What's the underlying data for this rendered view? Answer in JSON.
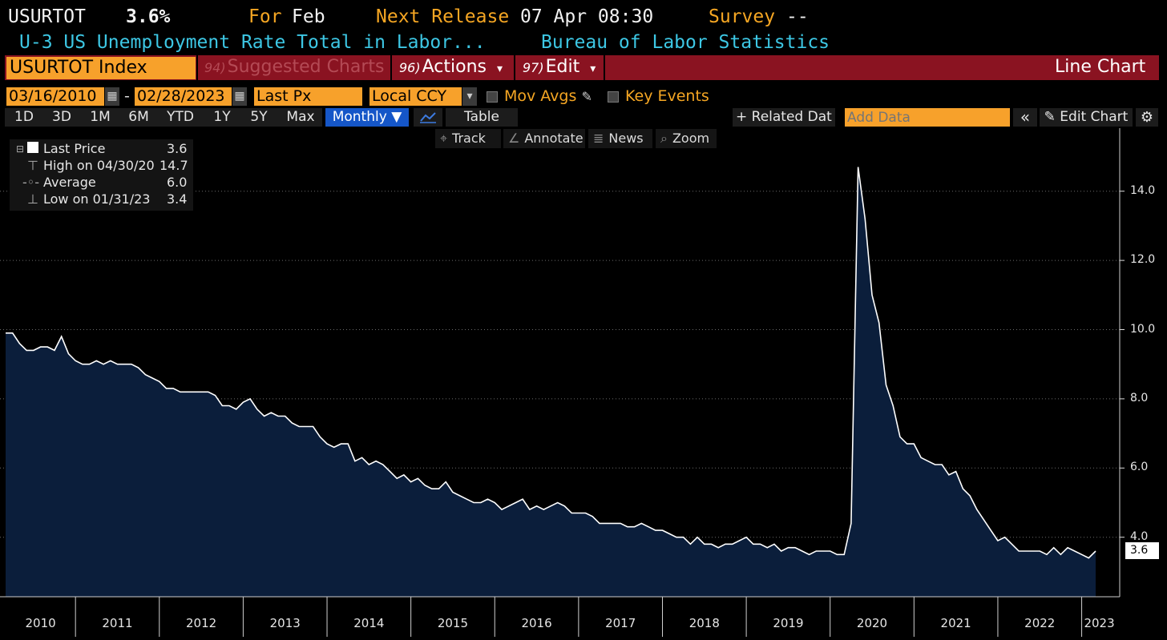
{
  "header": {
    "ticker": "USURTOT",
    "value": "3.6%",
    "for_label": "For",
    "for_value": "Feb",
    "next_release_label": "Next Release",
    "next_release_value": "07 Apr 08:30",
    "survey_label": "Survey",
    "survey_value": "--",
    "description": "U-3 US Unemployment Rate Total in Labor...",
    "source": "Bureau of Labor Statistics"
  },
  "toolbar": {
    "security": "USURTOT Index",
    "suggested_num": "94)",
    "suggested": "Suggested Charts",
    "actions_num": "96)",
    "actions": "Actions",
    "edit_num": "97)",
    "edit": "Edit",
    "chart_type": "Line Chart",
    "dropdown_arrow": "▾"
  },
  "controls": {
    "start_date": "03/16/2010",
    "dash": "-",
    "end_date": "02/28/2023",
    "field": "Last Px",
    "currency": "Local CCY",
    "mov_avgs": "Mov Avgs",
    "key_events": "Key Events",
    "periods": [
      "1D",
      "3D",
      "1M",
      "6M",
      "YTD",
      "1Y",
      "5Y",
      "Max"
    ],
    "frequency": "Monthly ▼",
    "table": "Table",
    "related_data": "+ Related Dat",
    "add_data_placeholder": "Add Data",
    "collapse": "«",
    "edit_chart": "Edit Chart",
    "tools": [
      "Track",
      "Annotate",
      "News",
      "Zoom"
    ]
  },
  "legend": {
    "rows": [
      {
        "label": "Last Price",
        "value": "3.6"
      },
      {
        "label": "High on 04/30/20",
        "value": "14.7"
      },
      {
        "label": "Average",
        "value": "6.0"
      },
      {
        "label": "Low on 01/31/23",
        "value": "3.4"
      }
    ]
  },
  "colors": {
    "accent_orange": "#f7a12b",
    "bar_red": "#8a1321",
    "cyan": "#3dc7e4",
    "area_fill": "#0b1e3b",
    "line": "#ffffff"
  },
  "chart_data": {
    "type": "area",
    "x_start": "2010-03",
    "x_end": "2023-02",
    "x_ticks": [
      "2010",
      "2011",
      "2012",
      "2013",
      "2014",
      "2015",
      "2016",
      "2017",
      "2018",
      "2019",
      "2020",
      "2021",
      "2022",
      "2023"
    ],
    "ylim": [
      3.0,
      15.0
    ],
    "y_ticks": [
      "4.0",
      "6.0",
      "8.0",
      "10.0",
      "12.0",
      "14.0"
    ],
    "last_value_label": "3.6",
    "grid": true,
    "series": [
      {
        "values": [
          9.9,
          9.9,
          9.6,
          9.4,
          9.4,
          9.5,
          9.5,
          9.4,
          9.8,
          9.3,
          9.1,
          9.0,
          9.0,
          9.1,
          9.0,
          9.1,
          9.0,
          9.0,
          9.0,
          8.9,
          8.7,
          8.6,
          8.5,
          8.3,
          8.3,
          8.2,
          8.2,
          8.2,
          8.2,
          8.2,
          8.1,
          7.8,
          7.8,
          7.7,
          7.9,
          8.0,
          7.7,
          7.5,
          7.6,
          7.5,
          7.5,
          7.3,
          7.2,
          7.2,
          7.2,
          6.9,
          6.7,
          6.6,
          6.7,
          6.7,
          6.2,
          6.3,
          6.1,
          6.2,
          6.1,
          5.9,
          5.7,
          5.8,
          5.6,
          5.7,
          5.5,
          5.4,
          5.4,
          5.6,
          5.3,
          5.2,
          5.1,
          5.0,
          5.0,
          5.1,
          5.0,
          4.8,
          4.9,
          5.0,
          5.1,
          4.8,
          4.9,
          4.8,
          4.9,
          5.0,
          4.9,
          4.7,
          4.7,
          4.7,
          4.6,
          4.4,
          4.4,
          4.4,
          4.4,
          4.3,
          4.3,
          4.4,
          4.3,
          4.2,
          4.2,
          4.1,
          4.0,
          4.0,
          3.8,
          4.0,
          3.8,
          3.8,
          3.7,
          3.8,
          3.8,
          3.9,
          4.0,
          3.8,
          3.8,
          3.7,
          3.8,
          3.6,
          3.7,
          3.7,
          3.6,
          3.5,
          3.6,
          3.6,
          3.6,
          3.5,
          3.5,
          4.4,
          14.7,
          13.2,
          11.0,
          10.2,
          8.4,
          7.8,
          6.9,
          6.7,
          6.7,
          6.3,
          6.2,
          6.1,
          6.1,
          5.8,
          5.9,
          5.4,
          5.2,
          4.8,
          4.5,
          4.2,
          3.9,
          4.0,
          3.8,
          3.6,
          3.6,
          3.6,
          3.6,
          3.5,
          3.7,
          3.5,
          3.7,
          3.6,
          3.5,
          3.4,
          3.6
        ]
      }
    ]
  }
}
